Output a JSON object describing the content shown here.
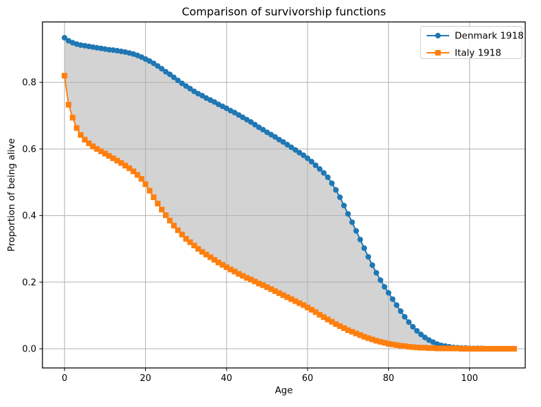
{
  "figure": {
    "background": "#ffffff"
  },
  "chart_data": {
    "type": "line",
    "title": "Comparison of survivorship functions",
    "xlabel": "Age",
    "ylabel": "Proportion of being alive",
    "grid": true,
    "legend_position": "upper right",
    "xlim": [
      -5.45,
      113.75
    ],
    "ylim": [
      -0.0576,
      0.9815
    ],
    "x_ticks": [
      0,
      20,
      40,
      60,
      80,
      100
    ],
    "x_tick_labels": [
      "0",
      "20",
      "40",
      "60",
      "80",
      "100"
    ],
    "y_ticks": [
      0.0,
      0.2,
      0.4,
      0.6,
      0.8
    ],
    "y_tick_labels": [
      "0.0",
      "0.2",
      "0.4",
      "0.6",
      "0.8"
    ],
    "x": [
      0,
      1,
      2,
      3,
      4,
      5,
      6,
      7,
      8,
      9,
      10,
      11,
      12,
      13,
      14,
      15,
      16,
      17,
      18,
      19,
      20,
      21,
      22,
      23,
      24,
      25,
      26,
      27,
      28,
      29,
      30,
      31,
      32,
      33,
      34,
      35,
      36,
      37,
      38,
      39,
      40,
      41,
      42,
      43,
      44,
      45,
      46,
      47,
      48,
      49,
      50,
      51,
      52,
      53,
      54,
      55,
      56,
      57,
      58,
      59,
      60,
      61,
      62,
      63,
      64,
      65,
      66,
      67,
      68,
      69,
      70,
      71,
      72,
      73,
      74,
      75,
      76,
      77,
      78,
      79,
      80,
      81,
      82,
      83,
      84,
      85,
      86,
      87,
      88,
      89,
      90,
      91,
      92,
      93,
      94,
      95,
      96,
      97,
      98,
      99,
      100,
      101,
      102,
      103,
      104,
      105,
      106,
      107,
      108,
      109,
      110,
      111
    ],
    "series": [
      {
        "name": "Denmark 1918",
        "color": "#1f77b4",
        "marker": "circle",
        "values": [
          0.934,
          0.925,
          0.919,
          0.915,
          0.912,
          0.91,
          0.908,
          0.906,
          0.904,
          0.902,
          0.9,
          0.898,
          0.897,
          0.895,
          0.893,
          0.891,
          0.888,
          0.885,
          0.881,
          0.876,
          0.87,
          0.864,
          0.857,
          0.849,
          0.841,
          0.832,
          0.824,
          0.815,
          0.806,
          0.797,
          0.789,
          0.781,
          0.773,
          0.766,
          0.76,
          0.753,
          0.747,
          0.741,
          0.734,
          0.728,
          0.722,
          0.715,
          0.709,
          0.702,
          0.695,
          0.688,
          0.681,
          0.673,
          0.665,
          0.658,
          0.65,
          0.643,
          0.636,
          0.628,
          0.621,
          0.613,
          0.605,
          0.597,
          0.589,
          0.581,
          0.572,
          0.562,
          0.551,
          0.54,
          0.528,
          0.515,
          0.497,
          0.477,
          0.455,
          0.43,
          0.405,
          0.38,
          0.354,
          0.328,
          0.302,
          0.276,
          0.251,
          0.228,
          0.206,
          0.186,
          0.168,
          0.149,
          0.131,
          0.113,
          0.096,
          0.08,
          0.066,
          0.054,
          0.043,
          0.034,
          0.026,
          0.02,
          0.014,
          0.01,
          0.008,
          0.006,
          0.004,
          0.003,
          0.002,
          0.002,
          0.001,
          0.001,
          0.001,
          0.001,
          0.0,
          0.0,
          0.0,
          0.0,
          0.0,
          0.0,
          0.0,
          0.0
        ]
      },
      {
        "name": "Italy 1918",
        "color": "#ff7f0e",
        "marker": "square",
        "values": [
          0.82,
          0.733,
          0.694,
          0.663,
          0.642,
          0.628,
          0.617,
          0.608,
          0.6,
          0.593,
          0.586,
          0.579,
          0.572,
          0.565,
          0.558,
          0.55,
          0.542,
          0.533,
          0.522,
          0.51,
          0.494,
          0.475,
          0.455,
          0.436,
          0.418,
          0.401,
          0.385,
          0.37,
          0.356,
          0.343,
          0.33,
          0.32,
          0.31,
          0.3,
          0.291,
          0.283,
          0.275,
          0.267,
          0.259,
          0.252,
          0.245,
          0.238,
          0.232,
          0.225,
          0.219,
          0.213,
          0.208,
          0.202,
          0.196,
          0.191,
          0.185,
          0.179,
          0.173,
          0.167,
          0.161,
          0.155,
          0.149,
          0.143,
          0.137,
          0.131,
          0.124,
          0.117,
          0.11,
          0.102,
          0.095,
          0.088,
          0.081,
          0.074,
          0.068,
          0.062,
          0.056,
          0.051,
          0.046,
          0.041,
          0.036,
          0.032,
          0.028,
          0.024,
          0.021,
          0.018,
          0.015,
          0.013,
          0.011,
          0.009,
          0.008,
          0.006,
          0.005,
          0.004,
          0.003,
          0.003,
          0.002,
          0.002,
          0.001,
          0.001,
          0.001,
          0.001,
          0.001,
          0.001,
          0.0,
          0.0,
          0.0,
          0.0,
          0.0,
          0.0,
          0.0,
          0.0,
          0.0,
          0.0,
          0.0,
          0.0,
          0.0,
          0.0
        ]
      }
    ],
    "fill_between": {
      "between": [
        "Denmark 1918",
        "Italy 1918"
      ],
      "color": "#d3d3d3"
    },
    "style": {
      "grid_color": "#b0b0b0",
      "spine_color": "#000000",
      "legend_border_color": "#cccccc",
      "legend_background": "#ffffff"
    }
  }
}
